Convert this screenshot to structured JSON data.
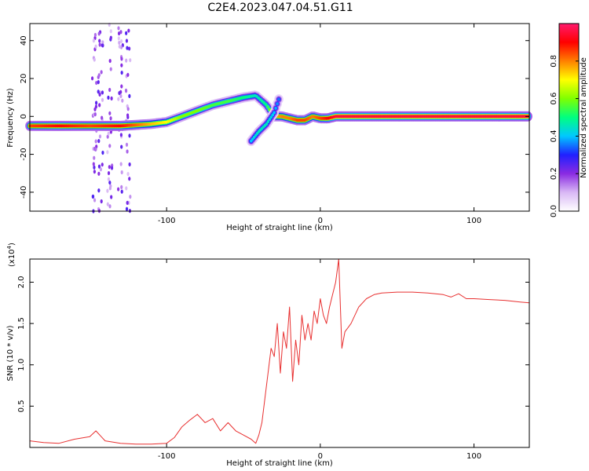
{
  "figure": {
    "title": "C2E4.2023.047.04.51.G11"
  },
  "chart_data": [
    {
      "type": "heatmap",
      "xlabel": "Height of straight line (km)",
      "ylabel": "Frequency (Hz)",
      "xlim": [
        -189,
        136
      ],
      "ylim": [
        -50,
        49
      ],
      "x_ticks": [
        -100,
        0,
        100
      ],
      "x_tick_labels": [
        "-100",
        "0",
        "100"
      ],
      "y_ticks": [
        -40,
        -20,
        0,
        20,
        40
      ],
      "y_tick_labels": [
        "-40",
        "-20",
        "0",
        "20",
        "40"
      ],
      "colorbar": {
        "label": "Normalized spectral amplitude",
        "range": [
          0,
          1
        ],
        "ticks": [
          0.0,
          0.2,
          0.4,
          0.6,
          0.8
        ],
        "tick_labels": [
          "0.0",
          "0.2",
          "0.4",
          "0.6",
          "0.8"
        ],
        "colors": [
          "#ffffff",
          "#d9b8f5",
          "#8a2be2",
          "#2020ff",
          "#00c8ff",
          "#00ff80",
          "#7fff00",
          "#ffff00",
          "#ff8000",
          "#ff0000",
          "#ff1a6e"
        ]
      },
      "ridge": {
        "x": [
          -189,
          -170,
          -150,
          -130,
          -110,
          -100,
          -90,
          -80,
          -70,
          -60,
          -50,
          -42,
          -35,
          -30,
          -25,
          -20,
          -15,
          -10,
          -5,
          0,
          5,
          10,
          20,
          40,
          60,
          80,
          100,
          120,
          136
        ],
        "y": [
          -5,
          -5,
          -5,
          -5,
          -4,
          -3,
          0,
          3,
          6,
          8,
          10,
          11,
          6,
          0,
          0,
          -1,
          -2,
          -2,
          0,
          -1,
          -1,
          0,
          0,
          0,
          0,
          0,
          0,
          0,
          0
        ],
        "amplitude": [
          0.85,
          0.9,
          0.85,
          0.9,
          0.75,
          0.7,
          0.6,
          0.6,
          0.55,
          0.55,
          0.5,
          0.45,
          0.5,
          0.75,
          0.8,
          0.8,
          0.85,
          0.85,
          0.8,
          0.85,
          0.9,
          0.95,
          0.95,
          0.95,
          0.95,
          0.95,
          0.95,
          0.95,
          0.95
        ]
      },
      "branch": {
        "x": [
          -45,
          -40,
          -35,
          -30,
          -27
        ],
        "y": [
          -13,
          -8,
          -4,
          2,
          9
        ],
        "amplitude": [
          0.4,
          0.45,
          0.45,
          0.4,
          0.35
        ]
      },
      "noise_columns_x": [
        -147,
        -143,
        -137,
        -130,
        -125
      ]
    },
    {
      "type": "line",
      "xlabel": "Height of straight line (km)",
      "ylabel": "SNR (10 * v/v)",
      "y_multiplier_label": "(x10",
      "y_multiplier_exponent": "4",
      "xlim": [
        -189,
        136
      ],
      "ylim": [
        0,
        2.28
      ],
      "x_ticks": [
        -100,
        0,
        100
      ],
      "x_tick_labels": [
        "-100",
        "0",
        "100"
      ],
      "y_ticks": [
        0.5,
        1.0,
        1.5,
        2.0
      ],
      "y_tick_labels": [
        "0.5",
        "1.0",
        "1.5",
        "2.0"
      ],
      "series": [
        {
          "color": "#e83030",
          "x": [
            -189,
            -180,
            -170,
            -160,
            -150,
            -146,
            -140,
            -130,
            -120,
            -110,
            -100,
            -95,
            -90,
            -85,
            -80,
            -75,
            -70,
            -65,
            -60,
            -55,
            -50,
            -45,
            -42,
            -40,
            -38,
            -36,
            -34,
            -32,
            -30,
            -28,
            -26,
            -24,
            -22,
            -20,
            -18,
            -16,
            -14,
            -12,
            -10,
            -8,
            -6,
            -4,
            -2,
            0,
            2,
            4,
            6,
            8,
            10,
            12,
            14,
            16,
            18,
            20,
            25,
            30,
            35,
            40,
            50,
            60,
            70,
            80,
            85,
            90,
            95,
            100,
            110,
            120,
            130,
            136
          ],
          "values": [
            0.08,
            0.06,
            0.05,
            0.1,
            0.13,
            0.2,
            0.08,
            0.05,
            0.04,
            0.04,
            0.05,
            0.12,
            0.25,
            0.33,
            0.4,
            0.3,
            0.35,
            0.2,
            0.3,
            0.2,
            0.15,
            0.1,
            0.05,
            0.15,
            0.3,
            0.6,
            0.9,
            1.2,
            1.1,
            1.5,
            0.9,
            1.4,
            1.2,
            1.7,
            0.8,
            1.3,
            1.0,
            1.6,
            1.3,
            1.5,
            1.3,
            1.65,
            1.5,
            1.8,
            1.6,
            1.5,
            1.7,
            1.85,
            2.0,
            2.28,
            1.2,
            1.4,
            1.45,
            1.5,
            1.7,
            1.8,
            1.85,
            1.87,
            1.88,
            1.88,
            1.87,
            1.85,
            1.82,
            1.86,
            1.8,
            1.8,
            1.79,
            1.78,
            1.76,
            1.75
          ]
        }
      ]
    }
  ]
}
